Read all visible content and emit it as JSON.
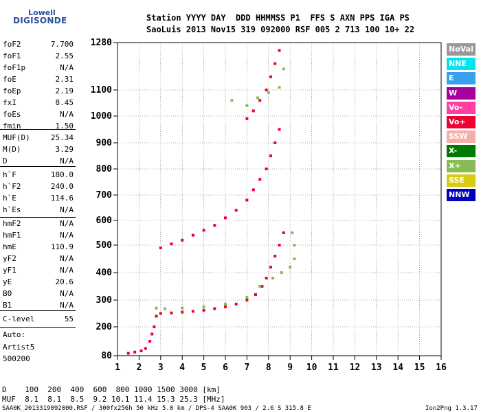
{
  "logo": {
    "line1": "Lowell",
    "line2": "DIGISONDE"
  },
  "header": {
    "row1": "Station YYYY DAY  DDD HHMMSS P1  FFS S AXN PPS IGA PS",
    "row2": "SaoLuis 2013 Nov15 319 092000 RSF 005 2 713 100 10+ 22"
  },
  "params": {
    "group1": [
      {
        "name": "foF2",
        "value": "7.700"
      },
      {
        "name": "foF1",
        "value": "2.55"
      },
      {
        "name": "foF1p",
        "value": "N/A"
      },
      {
        "name": "foE",
        "value": "2.31"
      },
      {
        "name": "foEp",
        "value": "2.19"
      },
      {
        "name": "fxI",
        "value": "8.45"
      },
      {
        "name": "foEs",
        "value": "N/A"
      },
      {
        "name": "fmin",
        "value": "1.50"
      }
    ],
    "group2": [
      {
        "name": "MUF(D)",
        "value": "25.34"
      },
      {
        "name": "M(D)",
        "value": "3.29"
      },
      {
        "name": "D",
        "value": "N/A"
      }
    ],
    "group3": [
      {
        "name": "h`F",
        "value": "180.0"
      },
      {
        "name": "h`F2",
        "value": "240.0"
      },
      {
        "name": "h`E",
        "value": "114.6"
      },
      {
        "name": "h`Es",
        "value": "N/A"
      }
    ],
    "group4": [
      {
        "name": "hmF2",
        "value": "N/A"
      },
      {
        "name": "hmF1",
        "value": "N/A"
      },
      {
        "name": "hmE",
        "value": "110.9"
      },
      {
        "name": "yF2",
        "value": "N/A"
      },
      {
        "name": "yF1",
        "value": "N/A"
      },
      {
        "name": "yE",
        "value": "20.6"
      },
      {
        "name": "B0",
        "value": "N/A"
      },
      {
        "name": "B1",
        "value": "N/A"
      }
    ],
    "group5": [
      {
        "name": "C-level",
        "value": "55"
      }
    ],
    "auto_label": "Auto:",
    "auto_name": "Artist5",
    "auto_version": "500200"
  },
  "legend": [
    {
      "label": "NoVal",
      "color": "#999999"
    },
    {
      "label": "NNE",
      "color": "#00e5ee"
    },
    {
      "label": "E",
      "color": "#3aa0ee"
    },
    {
      "label": "W",
      "color": "#a6009f"
    },
    {
      "label": "Vo-",
      "color": "#ff40a0"
    },
    {
      "label": "Vo+",
      "color": "#ee0033"
    },
    {
      "label": "SSW",
      "color": "#f4b0a8"
    },
    {
      "label": "X-",
      "color": "#007a00"
    },
    {
      "label": "X+",
      "color": "#88bb55"
    },
    {
      "label": "SSE",
      "color": "#d8cc10"
    },
    {
      "label": "NNW",
      "color": "#0000bb"
    }
  ],
  "bottom": {
    "d_row": "D    100  200  400  600  800 1000 1500 3000 [km]",
    "muf_row": "MUF  8.1  8.1  8.5  9.2 10.1 11.4 15.3 25.3 [MHz]",
    "footer_left": "SAA0K_2013319092000.RSF / 300fx256h 50 kHz 5.0 km / DPS-4 SAA0K 903 / 2.6 S 315.8 E",
    "footer_right": "Ion2Png 1.3.17"
  },
  "chart_data": {
    "type": "scatter",
    "x_ticks": [
      1,
      2,
      3,
      4,
      5,
      6,
      7,
      8,
      9,
      10,
      11,
      12,
      13,
      14,
      15,
      16
    ],
    "y_ticks": [
      80,
      200,
      300,
      400,
      500,
      600,
      700,
      800,
      900,
      1000,
      1100,
      1280
    ],
    "xlim": [
      1,
      16
    ],
    "ylim": [
      80,
      1280
    ],
    "grid": true,
    "traces": [
      {
        "name": "Vo+",
        "color": "#ee0033",
        "points": [
          [
            1.5,
            90
          ],
          [
            1.8,
            95
          ],
          [
            2.1,
            100
          ],
          [
            2.3,
            110
          ],
          [
            2.5,
            140
          ],
          [
            2.6,
            170
          ],
          [
            2.7,
            200
          ],
          [
            2.8,
            240
          ],
          [
            3.0,
            250
          ],
          [
            3.5,
            252
          ],
          [
            4.0,
            255
          ],
          [
            4.5,
            258
          ],
          [
            5.0,
            262
          ],
          [
            5.5,
            268
          ],
          [
            6.0,
            275
          ],
          [
            6.5,
            285
          ],
          [
            7.0,
            300
          ],
          [
            7.4,
            320
          ],
          [
            7.7,
            350
          ],
          [
            7.9,
            380
          ],
          [
            8.1,
            420
          ],
          [
            8.3,
            460
          ],
          [
            8.5,
            500
          ],
          [
            8.7,
            550
          ],
          [
            3.0,
            490
          ],
          [
            3.5,
            505
          ],
          [
            4.0,
            520
          ],
          [
            4.5,
            540
          ],
          [
            5.0,
            560
          ],
          [
            5.5,
            580
          ],
          [
            6.0,
            610
          ],
          [
            6.5,
            640
          ],
          [
            7.0,
            680
          ],
          [
            7.3,
            720
          ],
          [
            7.6,
            760
          ],
          [
            7.9,
            800
          ],
          [
            8.1,
            850
          ],
          [
            8.3,
            900
          ],
          [
            8.5,
            950
          ],
          [
            7.0,
            990
          ],
          [
            7.3,
            1020
          ],
          [
            7.6,
            1060
          ],
          [
            7.9,
            1100
          ],
          [
            8.1,
            1150
          ],
          [
            8.3,
            1200
          ],
          [
            8.5,
            1250
          ]
        ]
      },
      {
        "name": "X+",
        "color": "#88bb55",
        "points": [
          [
            2.8,
            270
          ],
          [
            3.2,
            268
          ],
          [
            4.0,
            270
          ],
          [
            5.0,
            275
          ],
          [
            6.0,
            285
          ],
          [
            7.0,
            310
          ],
          [
            7.6,
            350
          ],
          [
            8.2,
            380
          ],
          [
            8.6,
            400
          ],
          [
            9.0,
            420
          ],
          [
            9.2,
            450
          ],
          [
            9.2,
            500
          ],
          [
            9.1,
            550
          ],
          [
            6.3,
            1060
          ],
          [
            7.0,
            1040
          ],
          [
            7.5,
            1070
          ],
          [
            8.0,
            1090
          ],
          [
            8.5,
            1110
          ],
          [
            8.7,
            1180
          ]
        ]
      }
    ]
  }
}
